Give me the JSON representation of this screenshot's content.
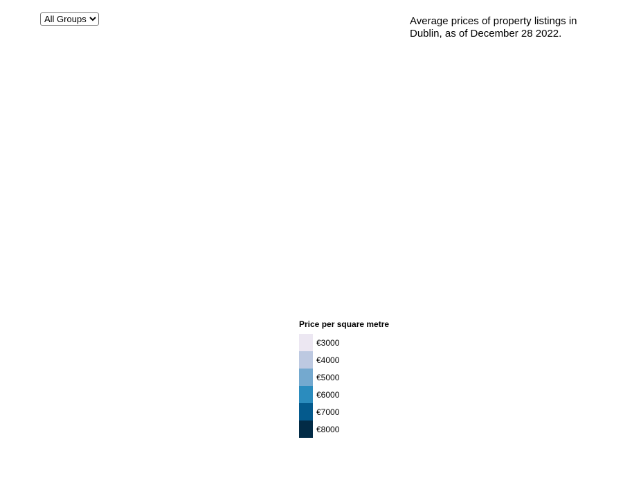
{
  "group_select": {
    "selected": "All Groups",
    "options": [
      "All Groups"
    ]
  },
  "caption": "Average prices of property listings in Dublin, as of December 28 2022.",
  "legend": {
    "title": "Price per square metre",
    "items": [
      {
        "label": "€3000",
        "color": "#ece7f2"
      },
      {
        "label": "€4000",
        "color": "#bdc9e1"
      },
      {
        "label": "€5000",
        "color": "#74a9cf"
      },
      {
        "label": "€6000",
        "color": "#2b8cbe"
      },
      {
        "label": "€7000",
        "color": "#045a8d"
      },
      {
        "label": "€8000",
        "color": "#022b46"
      }
    ]
  }
}
